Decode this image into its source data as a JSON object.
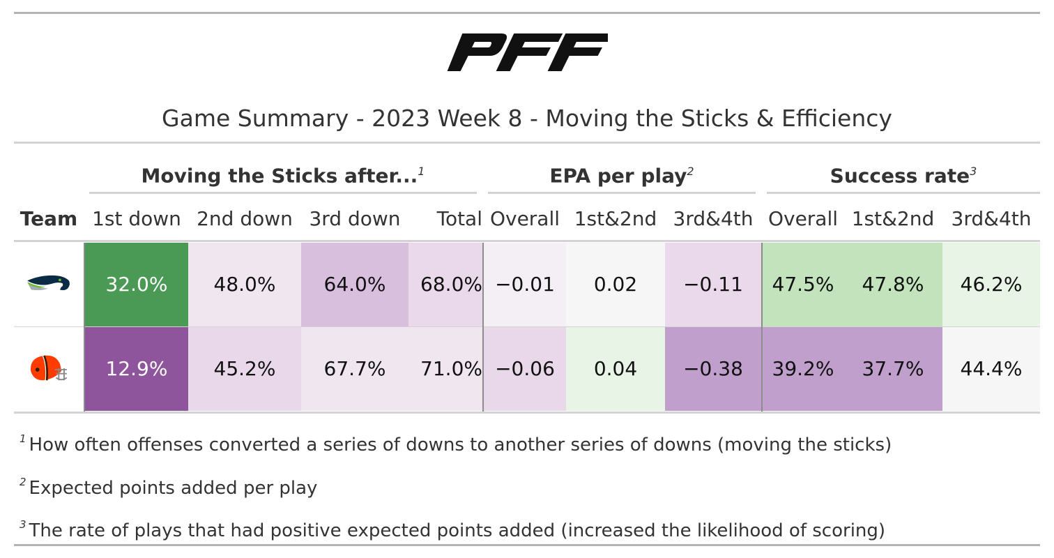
{
  "logo": {
    "text": "PFF",
    "icon": "pff-logo-icon"
  },
  "title": "Game Summary - 2023 Week 8 - Moving the Sticks & Efficiency",
  "spanners": [
    {
      "label": "Moving the Sticks after...",
      "mark": "1"
    },
    {
      "label": "EPA per play",
      "mark": "2"
    },
    {
      "label": "Success rate",
      "mark": "3"
    }
  ],
  "columns": [
    "Team",
    "1st down",
    "2nd down",
    "3rd down",
    "Total",
    "Overall",
    "1st&2nd",
    "3rd&4th",
    "Overall",
    "1st&2nd",
    "3rd&4th"
  ],
  "rows": [
    {
      "team_icon": "seahawks-logo-icon",
      "cells": [
        {
          "value": "32.0%",
          "bg": "#4a9a55",
          "fg": "#ffffff"
        },
        {
          "value": "48.0%",
          "bg": "#efe6ef",
          "fg": "#111111"
        },
        {
          "value": "64.0%",
          "bg": "#d8bfdd",
          "fg": "#111111"
        },
        {
          "value": "68.0%",
          "bg": "#e9d9ea",
          "fg": "#111111"
        },
        {
          "value": "−0.01",
          "bg": "#f4eff4",
          "fg": "#111111"
        },
        {
          "value": "0.02",
          "bg": "#f6f6f6",
          "fg": "#111111"
        },
        {
          "value": "−0.11",
          "bg": "#e9d9ea",
          "fg": "#111111"
        },
        {
          "value": "47.5%",
          "bg": "#c2e3bc",
          "fg": "#111111"
        },
        {
          "value": "47.8%",
          "bg": "#c2e3bc",
          "fg": "#111111"
        },
        {
          "value": "46.2%",
          "bg": "#e8f4e6",
          "fg": "#111111"
        }
      ]
    },
    {
      "team_icon": "browns-helmet-icon",
      "cells": [
        {
          "value": "12.9%",
          "bg": "#8e559d",
          "fg": "#ffffff"
        },
        {
          "value": "45.2%",
          "bg": "#e8d8e9",
          "fg": "#111111"
        },
        {
          "value": "67.7%",
          "bg": "#efe6ef",
          "fg": "#111111"
        },
        {
          "value": "71.0%",
          "bg": "#efe6ef",
          "fg": "#111111"
        },
        {
          "value": "−0.06",
          "bg": "#e8d8e9",
          "fg": "#111111"
        },
        {
          "value": "0.04",
          "bg": "#e8f4e6",
          "fg": "#111111"
        },
        {
          "value": "−0.38",
          "bg": "#c09fcc",
          "fg": "#111111"
        },
        {
          "value": "39.2%",
          "bg": "#c09fcc",
          "fg": "#111111"
        },
        {
          "value": "37.7%",
          "bg": "#c09fcc",
          "fg": "#111111"
        },
        {
          "value": "44.4%",
          "bg": "#f6f6f6",
          "fg": "#111111"
        }
      ]
    }
  ],
  "footnotes": [
    {
      "mark": "1",
      "text": "How often offenses converted a series of downs to another series of downs (moving the sticks)"
    },
    {
      "mark": "2",
      "text": "Expected points added per play"
    },
    {
      "mark": "3",
      "text": "The rate of plays that had positive expected points added (increased the likelihood of scoring)"
    }
  ]
}
